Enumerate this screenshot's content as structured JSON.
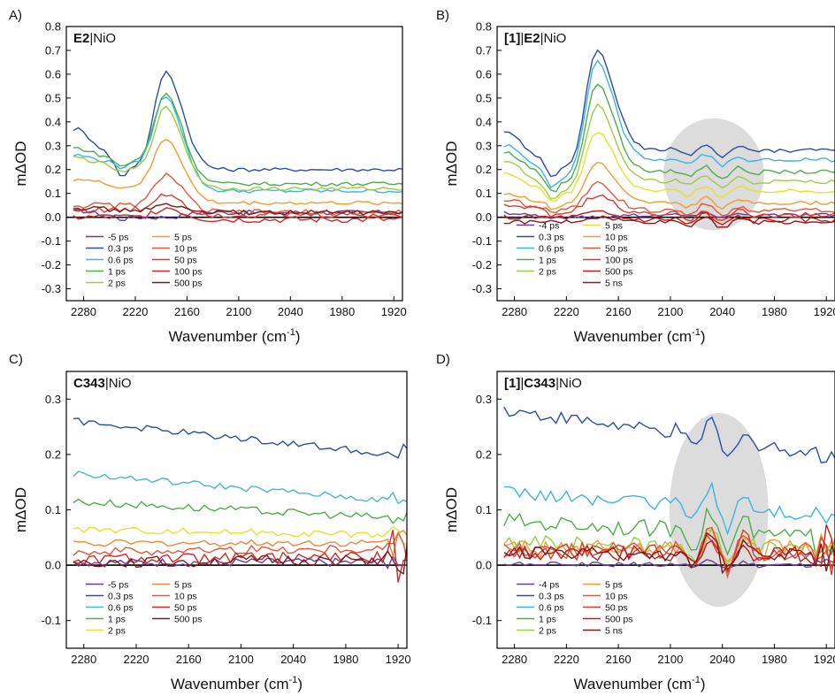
{
  "chart_data": [
    {
      "panel": "A)",
      "type": "line",
      "title_bold": "E2",
      "title_rest": "|NiO",
      "xlabel": "Wavenumber (cm",
      "xlabel_sup": "-1",
      "xlabel_end": ")",
      "ylabel": "mΔOD",
      "xlim": [
        2300,
        1910
      ],
      "ylim": [
        -0.35,
        0.8
      ],
      "xticks": [
        2280,
        2220,
        2160,
        2100,
        2040,
        1980,
        1920
      ],
      "yticks": [
        -0.3,
        -0.2,
        -0.1,
        0.0,
        0.1,
        0.2,
        0.3,
        0.4,
        0.5,
        0.6,
        0.7,
        0.8
      ],
      "zero_line": true,
      "legend": [
        [
          "-5 ps",
          "0.3 ps",
          "0.6 ps",
          "1 ps",
          "2 ps"
        ],
        [
          "5 ps",
          "10 ps",
          "50 ps",
          "100 ps",
          "500 ps"
        ]
      ],
      "series": [
        {
          "name": "-5 ps",
          "color": "#6a3d9a",
          "base": 0.03,
          "peak": 0.0,
          "tail": 0.02,
          "dip": 0.0,
          "noise": 0.01
        },
        {
          "name": "0.3 ps",
          "color": "#2c4ea3",
          "base": 0.37,
          "peak": 0.61,
          "tail": 0.2,
          "dip": 0.21,
          "noise": 0.008
        },
        {
          "name": "0.6 ps",
          "color": "#3cb4e5",
          "base": 0.26,
          "peak": 0.51,
          "tail": 0.11,
          "dip": 0.22,
          "noise": 0.008
        },
        {
          "name": "1 ps",
          "color": "#4daf4a",
          "base": 0.29,
          "peak": 0.52,
          "tail": 0.14,
          "dip": 0.23,
          "noise": 0.008
        },
        {
          "name": "2 ps",
          "color": "#9bcd42",
          "base": 0.25,
          "peak": 0.46,
          "tail": 0.12,
          "dip": 0.2,
          "noise": 0.008
        },
        {
          "name": "5 ps",
          "color": "#f39c33",
          "base": 0.16,
          "peak": 0.33,
          "tail": 0.06,
          "dip": 0.13,
          "noise": 0.008
        },
        {
          "name": "10 ps",
          "color": "#e8563a",
          "base": 0.05,
          "peak": 0.18,
          "tail": 0.02,
          "dip": 0.05,
          "noise": 0.012
        },
        {
          "name": "50 ps",
          "color": "#e03a2d",
          "base": 0.03,
          "peak": 0.1,
          "tail": 0.01,
          "dip": 0.03,
          "noise": 0.014
        },
        {
          "name": "100 ps",
          "color": "#d62728",
          "base": 0.0,
          "peak": 0.04,
          "tail": -0.01,
          "dip": 0.0,
          "noise": 0.014
        },
        {
          "name": "500 ps",
          "color": "#7b1a1a",
          "base": 0.04,
          "peak": 0.05,
          "tail": 0.02,
          "dip": 0.03,
          "noise": 0.01
        }
      ]
    },
    {
      "panel": "B)",
      "type": "line",
      "title_bold": "[1]",
      "title_bold2": "E2",
      "title_sep": "|",
      "title_rest": "|NiO",
      "xlabel": "Wavenumber (cm",
      "xlabel_sup": "-1",
      "xlabel_end": ")",
      "ylabel": "mΔOD",
      "xlim": [
        2300,
        1910
      ],
      "ylim": [
        -0.35,
        0.8
      ],
      "xticks": [
        2280,
        2220,
        2160,
        2100,
        2040,
        1980,
        1920
      ],
      "yticks": [
        -0.3,
        -0.2,
        -0.1,
        0.0,
        0.1,
        0.2,
        0.3,
        0.4,
        0.5,
        0.6,
        0.7,
        0.8
      ],
      "zero_line": true,
      "highlight": {
        "cx": 2050,
        "cy": 0.18,
        "rx": 58,
        "ry": 0.235
      },
      "legend": [
        [
          "-4 ps",
          "0.3 ps",
          "0.6 ps",
          "1 ps",
          "2 ps"
        ],
        [
          "5 ps",
          "10 ps",
          "50 ps",
          "100 ps",
          "500 ps",
          "5 ns"
        ]
      ],
      "series": [
        {
          "name": "-4 ps",
          "color": "#6a3d9a",
          "base": 0.02,
          "peak": 0.0,
          "tail": 0.01,
          "dip": 0.0,
          "noise": 0.008
        },
        {
          "name": "0.3 ps",
          "color": "#2c4ea3",
          "base": 0.35,
          "peak": 0.7,
          "tail": 0.28,
          "dip": 0.2,
          "noise": 0.008
        },
        {
          "name": "0.6 ps",
          "color": "#3cb4e5",
          "base": 0.3,
          "peak": 0.65,
          "tail": 0.24,
          "dip": 0.16,
          "noise": 0.008
        },
        {
          "name": "1 ps",
          "color": "#4daf4a",
          "base": 0.27,
          "peak": 0.56,
          "tail": 0.19,
          "dip": 0.14,
          "noise": 0.008
        },
        {
          "name": "2 ps",
          "color": "#9bcd42",
          "base": 0.23,
          "peak": 0.47,
          "tail": 0.15,
          "dip": 0.11,
          "noise": 0.008
        },
        {
          "name": "5 ps",
          "color": "#e6e12f",
          "base": 0.18,
          "peak": 0.36,
          "tail": 0.11,
          "dip": 0.09,
          "noise": 0.008
        },
        {
          "name": "10 ps",
          "color": "#f39c33",
          "base": 0.1,
          "peak": 0.23,
          "tail": 0.06,
          "dip": 0.05,
          "noise": 0.008
        },
        {
          "name": "50 ps",
          "color": "#e8563a",
          "base": 0.07,
          "peak": 0.14,
          "tail": 0.03,
          "dip": 0.03,
          "noise": 0.01
        },
        {
          "name": "100 ps",
          "color": "#e03a2d",
          "base": 0.05,
          "peak": 0.09,
          "tail": 0.01,
          "dip": 0.02,
          "noise": 0.012
        },
        {
          "name": "500 ps",
          "color": "#c51b1b",
          "base": 0.0,
          "peak": 0.02,
          "tail": -0.01,
          "dip": 0.0,
          "noise": 0.012
        },
        {
          "name": "5 ns",
          "color": "#8b1a1a",
          "base": -0.02,
          "peak": 0.0,
          "tail": -0.02,
          "dip": -0.02,
          "noise": 0.008
        }
      ]
    },
    {
      "panel": "C)",
      "type": "line",
      "title_bold": "C343",
      "title_rest": "|NiO",
      "xlabel": "Wavenumber (cm",
      "xlabel_sup": "-1",
      "xlabel_end": ")",
      "ylabel": "mΔOD",
      "xlim": [
        2300,
        1910
      ],
      "ylim": [
        -0.15,
        0.35
      ],
      "xticks": [
        2280,
        2220,
        2160,
        2100,
        2040,
        1980,
        1920
      ],
      "yticks": [
        -0.1,
        0.0,
        0.1,
        0.2,
        0.3
      ],
      "zero_line": true,
      "legend": [
        [
          "-5 ps",
          "0.3 ps",
          "0.6 ps",
          "1 ps",
          "2 ps"
        ],
        [
          "5 ps",
          "10 ps",
          "50 ps",
          "500 ps"
        ]
      ],
      "series": [
        {
          "name": "-5 ps",
          "color": "#6a3d9a",
          "base": 0.005,
          "tail": 0.005,
          "noise": 0.008
        },
        {
          "name": "0.3 ps",
          "color": "#2c4ea3",
          "base": 0.26,
          "tail": 0.2,
          "noise": 0.006
        },
        {
          "name": "0.6 ps",
          "color": "#45b7c8",
          "base": 0.165,
          "tail": 0.115,
          "noise": 0.006
        },
        {
          "name": "1 ps",
          "color": "#4daf4a",
          "base": 0.115,
          "tail": 0.085,
          "noise": 0.007
        },
        {
          "name": "2 ps",
          "color": "#e6e12f",
          "base": 0.065,
          "tail": 0.055,
          "noise": 0.006
        },
        {
          "name": "5 ps",
          "color": "#f08a3a",
          "base": 0.04,
          "tail": 0.04,
          "noise": 0.006
        },
        {
          "name": "10 ps",
          "color": "#e8563a",
          "base": 0.025,
          "tail": 0.03,
          "noise": 0.008
        },
        {
          "name": "50 ps",
          "color": "#d62728",
          "base": 0.01,
          "tail": 0.015,
          "noise": 0.01
        },
        {
          "name": "500 ps",
          "color": "#7b1a1a",
          "base": 0.005,
          "tail": 0.01,
          "noise": 0.01
        }
      ]
    },
    {
      "panel": "D)",
      "type": "line",
      "title_bold": "[1]",
      "title_bold2": "C343",
      "title_sep": "|",
      "title_rest": "|NiO",
      "xlabel": "Wavenumber (cm",
      "xlabel_sup": "-1",
      "xlabel_end": ")",
      "ylabel": "mΔOD",
      "xlim": [
        2300,
        1910
      ],
      "ylim": [
        -0.15,
        0.35
      ],
      "xticks": [
        2280,
        2220,
        2160,
        2100,
        2040,
        1980,
        1920
      ],
      "yticks": [
        -0.1,
        0.0,
        0.1,
        0.2,
        0.3
      ],
      "zero_line": true,
      "highlight": {
        "cx": 2044,
        "cy": 0.1,
        "rx": 57,
        "ry": 0.175
      },
      "legend": [
        [
          "-4 ps",
          "0.3 ps",
          "0.6 ps",
          "1 ps",
          "2 ps"
        ],
        [
          "5 ps",
          "10 ps",
          "50 ps",
          "500 ps",
          "5 ns"
        ]
      ],
      "series": [
        {
          "name": "-4 ps",
          "color": "#6a3d9a",
          "base": 0.002,
          "tail": 0.0,
          "noise": 0.004
        },
        {
          "name": "0.3 ps",
          "color": "#2c4ea3",
          "base": 0.28,
          "tail": 0.2,
          "noise": 0.012
        },
        {
          "name": "0.6 ps",
          "color": "#3cb4e5",
          "base": 0.13,
          "tail": 0.09,
          "noise": 0.012
        },
        {
          "name": "1 ps",
          "color": "#4daf4a",
          "base": 0.08,
          "tail": 0.05,
          "noise": 0.015
        },
        {
          "name": "2 ps",
          "color": "#9bcd42",
          "base": 0.04,
          "tail": 0.03,
          "noise": 0.015
        },
        {
          "name": "5 ps",
          "color": "#f39c33",
          "base": 0.03,
          "tail": 0.03,
          "noise": 0.016
        },
        {
          "name": "10 ps",
          "color": "#e8563a",
          "base": 0.025,
          "tail": 0.025,
          "noise": 0.016
        },
        {
          "name": "50 ps",
          "color": "#e03a2d",
          "base": 0.025,
          "tail": 0.025,
          "noise": 0.016
        },
        {
          "name": "500 ps",
          "color": "#c51b1b",
          "base": 0.02,
          "tail": 0.02,
          "noise": 0.016
        },
        {
          "name": "5 ns",
          "color": "#7b1a1a",
          "base": 0.02,
          "tail": 0.02,
          "noise": 0.014
        }
      ]
    }
  ]
}
